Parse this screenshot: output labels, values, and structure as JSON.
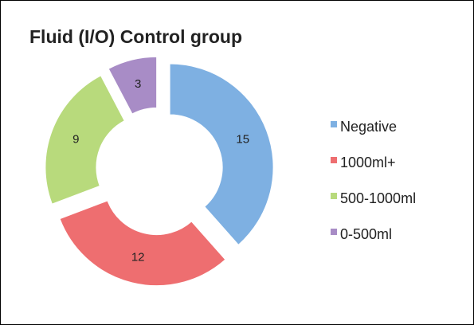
{
  "chart_data": {
    "type": "donut",
    "title": "Fluid (I/O) Control group",
    "categories": [
      "Negative",
      "1000ml+",
      "500-1000ml",
      "0-500ml"
    ],
    "values": [
      15,
      12,
      9,
      3
    ],
    "colors": [
      "#7eb0e2",
      "#ee6e70",
      "#b8da7c",
      "#a88cc6"
    ],
    "legend": "right"
  }
}
